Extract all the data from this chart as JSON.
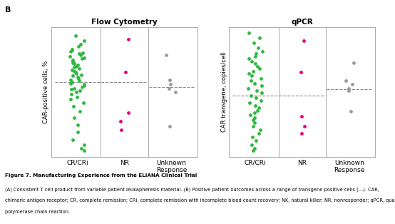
{
  "title_left": "Flow Cytometry",
  "title_right": "qPCR",
  "ylabel_left": "CAR-positive cells, %",
  "ylabel_right": "CAR transgene, copies/cell",
  "panel_label": "B",
  "green": "#2db83d",
  "pink": "#e6007e",
  "gray": "#999999",
  "background_color": "#ffffff",
  "border_color": "#aaaaaa",
  "fc_cr_y": [
    96,
    92,
    89,
    87,
    85,
    84,
    83,
    82,
    81,
    80,
    79,
    78,
    77,
    76,
    75,
    74,
    73,
    72,
    71,
    70,
    69,
    68,
    67,
    66,
    65,
    64,
    63,
    62,
    61,
    60,
    59,
    58,
    57,
    56,
    55,
    54,
    53,
    52,
    51,
    50,
    48,
    46,
    44,
    41,
    38,
    34,
    29,
    23,
    17,
    11,
    7,
    4,
    2
  ],
  "fc_nr_y": [
    93,
    66,
    33,
    26,
    19
  ],
  "fc_unk_y": [
    80,
    60,
    56,
    53,
    50,
    22
  ],
  "fc_median_cr": 58,
  "fc_median_unk": 54,
  "qpcr_cr_y": [
    98,
    94,
    90,
    86,
    83,
    81,
    79,
    77,
    75,
    73,
    71,
    69,
    67,
    65,
    63,
    61,
    59,
    57,
    55,
    53,
    51,
    49,
    47,
    45,
    43,
    41,
    39,
    37,
    35,
    33,
    31,
    29,
    27,
    25,
    22,
    19,
    16,
    13,
    10,
    7,
    4,
    2
  ],
  "qpcr_nr_y": [
    92,
    66,
    30,
    22,
    16
  ],
  "qpcr_unk_y": [
    74,
    59,
    56,
    53,
    51,
    34
  ],
  "qpcr_median_cr": 47,
  "qpcr_median_unk": 52,
  "fig_title": "Figure 7. Manufacturing Experience from the ELIANA Clinical Trial",
  "fig_cap1": "(A) Consistent T cell product from variable patient leukapheresis material. (B) Positive patient outcomes across a range of transgene positive cells (…). CAR,",
  "fig_cap2": "chimeric antigen receptor; CR, complete remission; CRi, complete remission with incomplete blood count recovery; NK, natural killer; NR, nonresponder; qPCR, quantitative",
  "fig_cap3": "polymerase chain reaction."
}
